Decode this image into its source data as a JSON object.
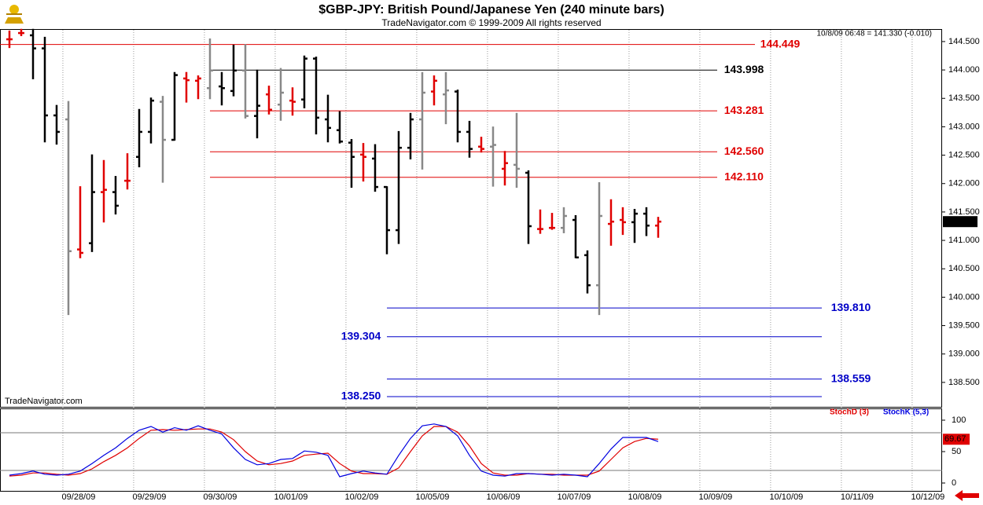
{
  "header": {
    "title": "$GBP-JPY:  British Pound/Japanese Yen  (240 minute bars)",
    "subtitle": "TradeNavigator.com © 1999-2009 All rights reserved",
    "info": "10/8/09 06:48 = 141.330 (-0.010)",
    "watermark": "TradeNavigator.com"
  },
  "chart_data": [
    {
      "type": "ohlc",
      "x": [
        0,
        1,
        2,
        3,
        4,
        5,
        6,
        7,
        8,
        9,
        10,
        11,
        12,
        13,
        14,
        15,
        16,
        17,
        18,
        19,
        20,
        21,
        22,
        23,
        24,
        25,
        26,
        27,
        28,
        29,
        30,
        31,
        32,
        33,
        34,
        35,
        36,
        37,
        38,
        39,
        40,
        41,
        42,
        43,
        44,
        45,
        46,
        47,
        48,
        49,
        50,
        51,
        52,
        53,
        54,
        55
      ],
      "open": [
        144.54,
        144.65,
        144.61,
        144.38,
        143.2,
        143.13,
        140.84,
        140.95,
        141.85,
        141.85,
        142.05,
        142.47,
        142.91,
        143.44,
        142.77,
        143.85,
        143.81,
        143.68,
        143.71,
        143.63,
        143.99,
        143.19,
        143.57,
        143.39,
        143.46,
        143.48,
        144.2,
        143.13,
        142.94,
        142.72,
        142.51,
        142.44,
        141.94,
        141.18,
        142.63,
        143.13,
        143.62,
        143.57,
        143.62,
        142.91,
        142.65,
        142.65,
        142.26,
        142.33,
        142.19,
        141.2,
        141.22,
        141.22,
        141.36,
        140.74,
        140.21,
        141.29,
        141.36,
        141.32,
        141.47,
        141.26
      ],
      "high": [
        144.68,
        144.71,
        144.71,
        144.57,
        143.37,
        143.44,
        141.94,
        142.5,
        142.4,
        142.12,
        142.52,
        143.3,
        143.5,
        143.53,
        143.95,
        143.95,
        143.89,
        144.54,
        143.95,
        144.43,
        144.44,
        143.99,
        143.71,
        144.02,
        143.68,
        144.24,
        144.22,
        143.55,
        143.26,
        142.77,
        142.7,
        142.68,
        141.94,
        142.91,
        143.23,
        143.95,
        143.89,
        143.95,
        143.64,
        143.09,
        142.81,
        142.99,
        142.56,
        143.23,
        142.22,
        141.53,
        141.47,
        141.57,
        141.43,
        140.81,
        142.01,
        141.71,
        141.57,
        141.54,
        141.57,
        141.4
      ],
      "low": [
        144.4,
        144.61,
        143.85,
        142.74,
        142.7,
        139.7,
        140.7,
        140.81,
        141.33,
        141.47,
        141.91,
        142.3,
        142.72,
        142.03,
        142.77,
        143.44,
        143.5,
        143.5,
        143.39,
        143.55,
        143.16,
        142.81,
        143.23,
        143.12,
        143.21,
        143.34,
        142.88,
        142.74,
        142.72,
        141.94,
        142.05,
        141.87,
        140.77,
        140.95,
        142.44,
        142.26,
        143.39,
        143.06,
        142.74,
        142.47,
        142.56,
        141.96,
        141.98,
        141.94,
        140.95,
        141.13,
        141.2,
        141.14,
        140.7,
        140.08,
        139.7,
        140.92,
        141.11,
        140.97,
        141.09,
        141.06
      ],
      "close": [
        144.54,
        144.65,
        144.38,
        143.2,
        142.91,
        140.81,
        140.78,
        141.85,
        141.89,
        141.61,
        142.05,
        142.91,
        143.46,
        142.77,
        143.91,
        143.82,
        143.85,
        143.99,
        143.68,
        143.99,
        143.19,
        143.37,
        143.3,
        143.6,
        143.44,
        144.2,
        143.16,
        142.98,
        142.74,
        142.47,
        142.47,
        141.94,
        141.18,
        142.63,
        143.13,
        143.6,
        143.81,
        143.64,
        142.91,
        142.61,
        142.61,
        142.68,
        142.36,
        142.26,
        141.25,
        141.2,
        141.22,
        141.43,
        140.7,
        140.21,
        141.43,
        141.33,
        141.32,
        141.47,
        141.26,
        141.33
      ],
      "colors": [
        "#e00000",
        "#e00000",
        "#000000",
        "#000000",
        "#000000",
        "#888888",
        "#e00000",
        "#000000",
        "#e00000",
        "#000000",
        "#e00000",
        "#000000",
        "#000000",
        "#888888",
        "#000000",
        "#e00000",
        "#e00000",
        "#888888",
        "#000000",
        "#000000",
        "#888888",
        "#000000",
        "#e00000",
        "#888888",
        "#e00000",
        "#000000",
        "#000000",
        "#000000",
        "#000000",
        "#000000",
        "#e00000",
        "#000000",
        "#000000",
        "#000000",
        "#000000",
        "#888888",
        "#e00000",
        "#888888",
        "#000000",
        "#000000",
        "#e00000",
        "#888888",
        "#e00000",
        "#888888",
        "#000000",
        "#e00000",
        "#e00000",
        "#888888",
        "#000000",
        "#000000",
        "#888888",
        "#e00000",
        "#e00000",
        "#000000",
        "#000000",
        "#e00000"
      ],
      "xlim": [
        -0.8,
        79.07
      ],
      "xticks": [
        {
          "value": 4.53,
          "label": "09/28/09"
        },
        {
          "value": 10.53,
          "label": "09/29/09"
        },
        {
          "value": 16.53,
          "label": "09/30/09"
        },
        {
          "value": 22.53,
          "label": "10/01/09"
        },
        {
          "value": 28.53,
          "label": "10/02/09"
        },
        {
          "value": 34.53,
          "label": "10/05/09"
        },
        {
          "value": 40.53,
          "label": "10/06/09"
        },
        {
          "value": 46.53,
          "label": "10/07/09"
        },
        {
          "value": 52.53,
          "label": "10/08/09"
        },
        {
          "value": 58.53,
          "label": "10/09/09"
        },
        {
          "value": 64.53,
          "label": "10/10/09"
        },
        {
          "value": 70.53,
          "label": "10/11/09"
        },
        {
          "value": 76.53,
          "label": "10/12/09"
        }
      ],
      "ylim": [
        138.07,
        144.72
      ],
      "yticks": [
        {
          "value": 138.5,
          "label": "138.500"
        },
        {
          "value": 139,
          "label": "139.000"
        },
        {
          "value": 139.5,
          "label": "139.500"
        },
        {
          "value": 140,
          "label": "140.000"
        },
        {
          "value": 140.5,
          "label": "140.500"
        },
        {
          "value": 141,
          "label": "141.000"
        },
        {
          "value": 141.5,
          "label": "141.500"
        },
        {
          "value": 142,
          "label": "142.000"
        },
        {
          "value": 142.5,
          "label": "142.500"
        },
        {
          "value": 143,
          "label": "143.000"
        },
        {
          "value": 143.5,
          "label": "143.500"
        },
        {
          "value": 144,
          "label": "144.000"
        },
        {
          "value": 144.5,
          "label": "144.500"
        }
      ],
      "grid": true,
      "levels": [
        {
          "value": 144.449,
          "color": "#e00000"
        },
        {
          "value": 143.998,
          "color": "#000000"
        },
        {
          "value": 143.281,
          "color": "#e00000"
        },
        {
          "value": 142.56,
          "label": "142.560",
          "color": "#e00000"
        },
        {
          "value": 142.11,
          "label": "142.110",
          "color": "#e00000"
        },
        {
          "value": 139.81,
          "label": "139.810",
          "color": "#0000c8"
        },
        {
          "value": 139.304,
          "color": "#0000c8"
        },
        {
          "value": 138.559,
          "color": "#0000c8"
        },
        {
          "value": 138.25,
          "label": "138.250",
          "color": "#0000c8"
        }
      ],
      "last": {
        "value": 141.33,
        "label": "141.330"
      }
    },
    {
      "type": "line",
      "x": [
        0,
        1,
        2,
        3,
        4,
        5,
        6,
        7,
        8,
        9,
        10,
        11,
        12,
        13,
        14,
        15,
        16,
        17,
        18,
        19,
        20,
        21,
        22,
        23,
        24,
        25,
        26,
        27,
        28,
        29,
        30,
        31,
        32,
        33,
        34,
        35,
        36,
        37,
        38,
        39,
        40,
        41,
        42,
        43,
        44,
        45,
        46,
        47,
        48,
        49,
        50,
        51,
        52,
        53,
        54,
        55
      ],
      "xlim": [
        -0.8,
        79.07
      ],
      "series": [
        {
          "name": "StochD (3)",
          "color": "#e00000",
          "values": [
            11,
            12.5,
            16,
            16,
            14,
            12.5,
            15,
            22.5,
            34,
            44,
            56,
            71,
            84,
            85,
            84,
            85,
            86,
            86,
            81,
            69,
            50,
            35,
            29,
            31,
            35,
            44,
            46,
            47.5,
            31,
            19,
            15,
            15,
            14,
            24,
            50,
            75,
            90,
            90,
            81,
            59,
            31,
            16,
            12.5,
            12.5,
            15,
            14,
            14,
            12.5,
            12.5,
            12.5,
            19,
            37.5,
            56,
            66,
            71,
            69.67
          ]
        },
        {
          "name": "StochK (5,3)",
          "color": "#0000e0",
          "values": [
            12.5,
            15,
            19,
            14,
            12.5,
            14,
            19,
            31,
            44,
            56,
            71,
            84,
            90,
            81,
            88,
            84,
            91,
            84,
            78,
            56,
            37.5,
            29,
            31,
            37.5,
            39,
            51,
            49,
            44,
            10,
            15,
            19,
            16,
            14,
            44,
            71,
            91,
            94,
            90,
            75,
            44,
            19,
            12.5,
            11,
            15,
            15,
            14,
            12.5,
            14,
            12.5,
            10,
            31,
            54,
            72.5,
            72.5,
            72.5,
            66
          ]
        }
      ],
      "ylim": [
        -12.5,
        118.75
      ],
      "yticks": [
        0,
        50,
        100
      ],
      "hlines": [
        20,
        80
      ]
    }
  ]
}
